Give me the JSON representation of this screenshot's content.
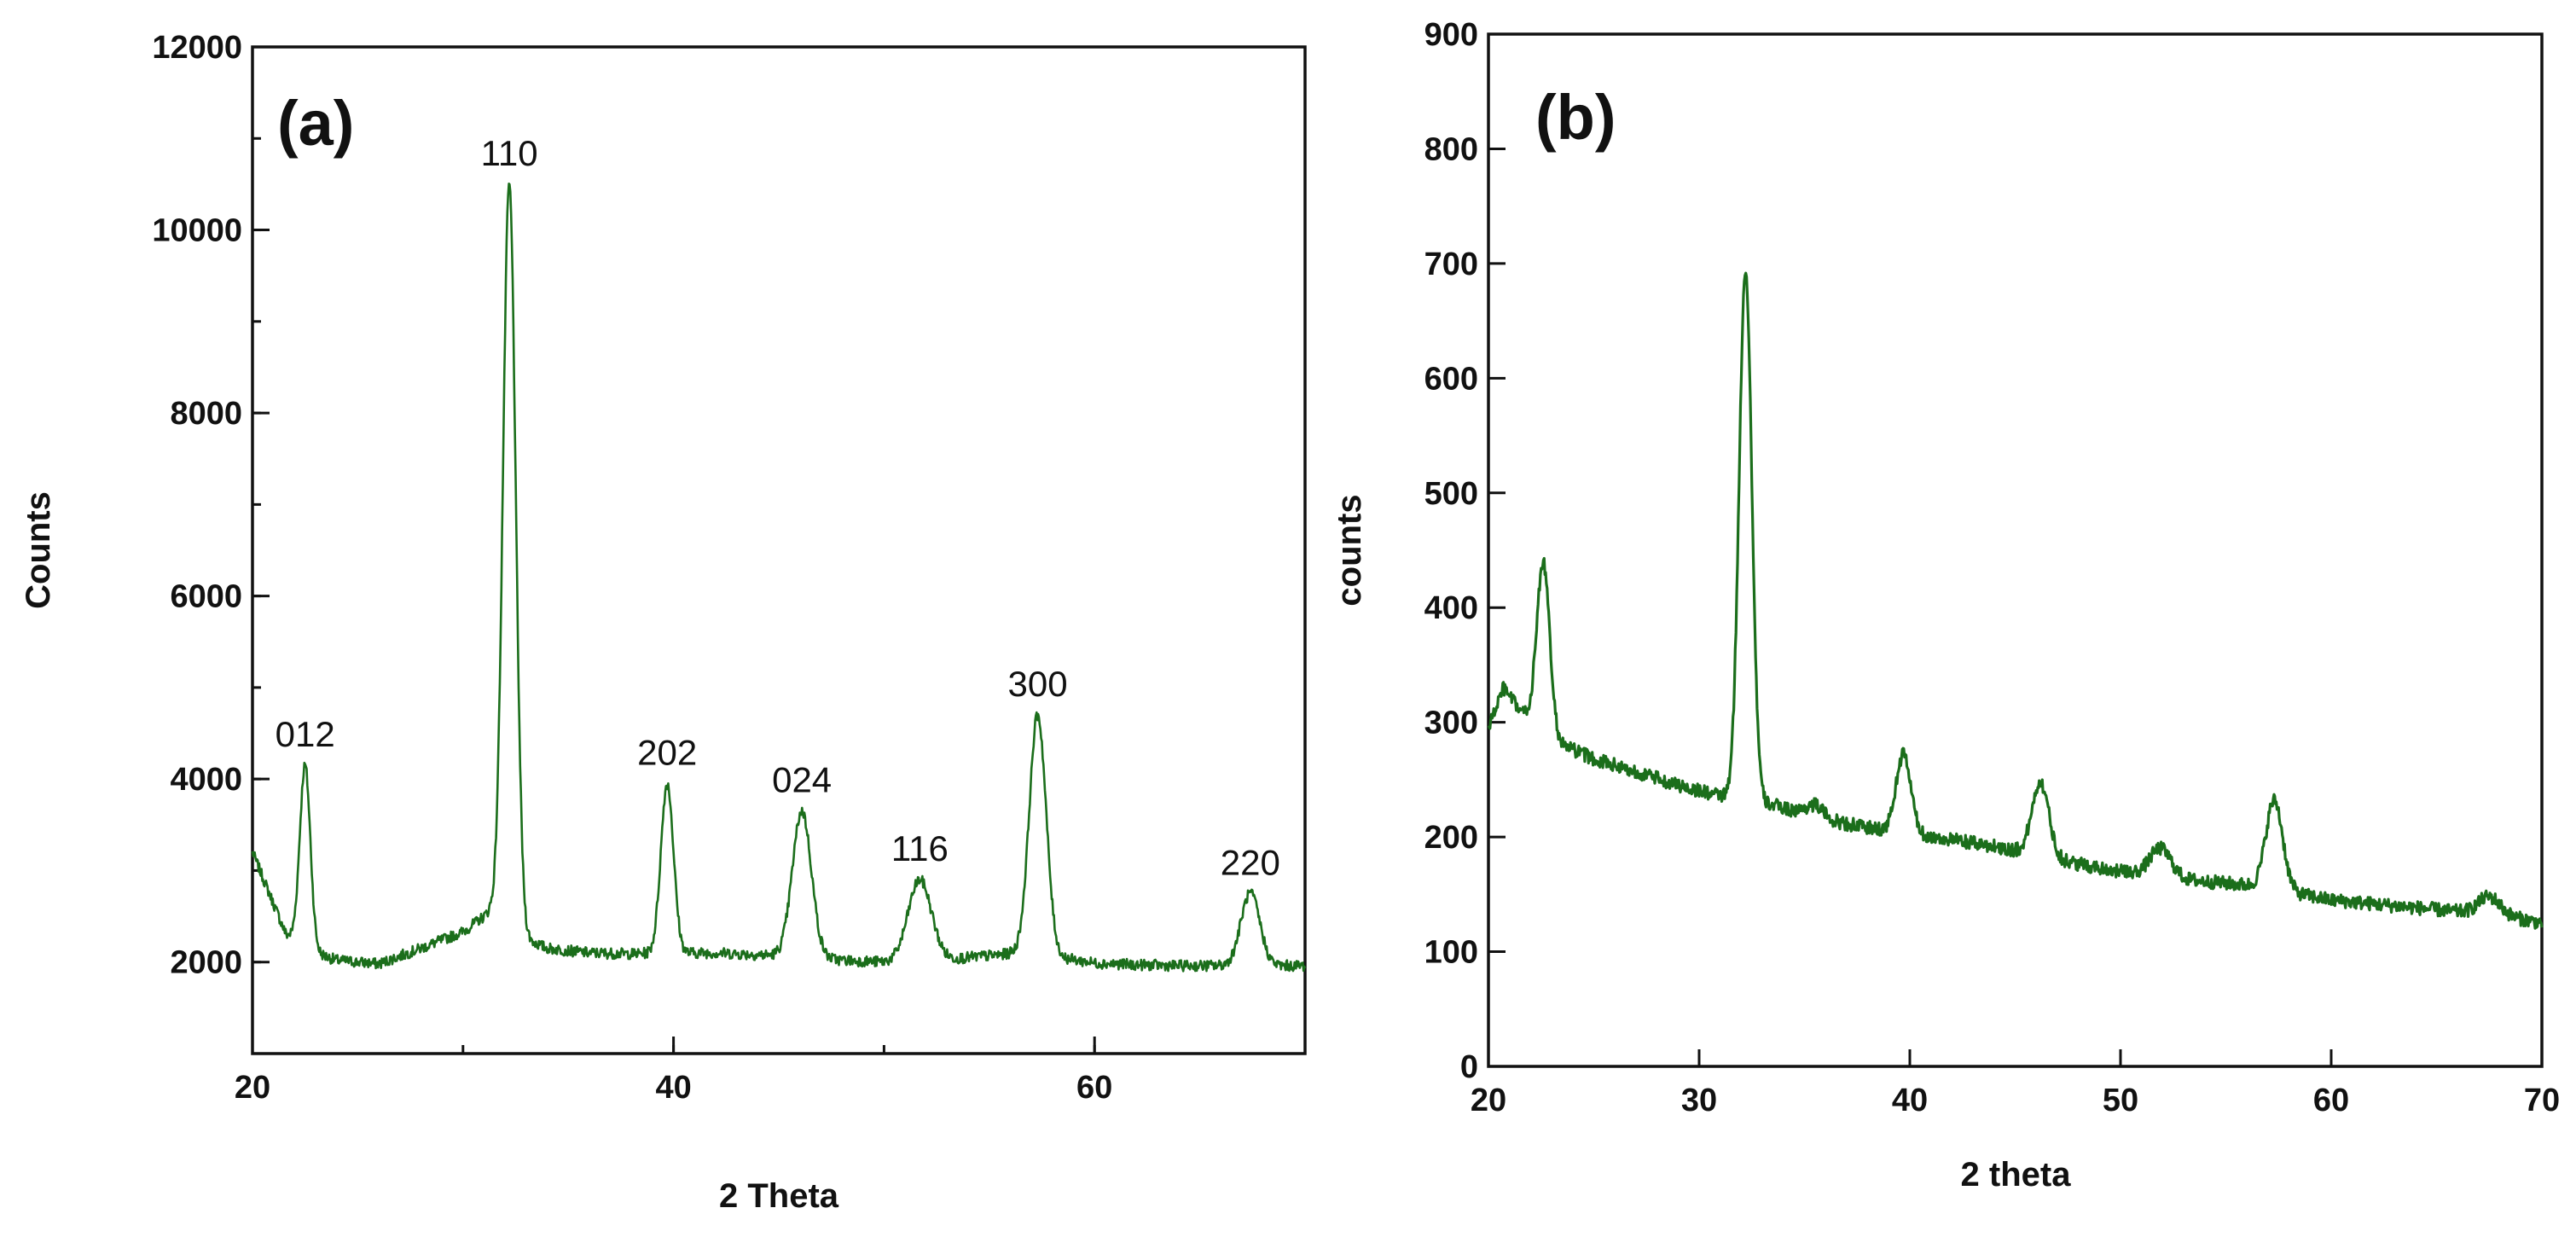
{
  "colors": {
    "line": "#1b6e1b",
    "axis": "#111111",
    "background": "#ffffff"
  },
  "chart_data": [
    {
      "type": "line",
      "panel_label": "(a)",
      "title": "",
      "xlabel": "2 Theta",
      "ylabel": "Counts",
      "xlim": [
        20,
        70
      ],
      "ylim": [
        1000,
        12000
      ],
      "xticks": [
        20,
        40,
        60
      ],
      "xtick_labels": [
        "20",
        "40",
        "60"
      ],
      "yticks": [
        2000,
        4000,
        6000,
        8000,
        10000,
        12000
      ],
      "ytick_labels": [
        "2000",
        "4000",
        "6000",
        "8000",
        "10000",
        "12000"
      ],
      "minor_x_step": 10,
      "minor_y_step": 1000,
      "grid": false,
      "noise": 60,
      "baseline_points": [
        [
          20,
          3200
        ],
        [
          20.8,
          2750
        ],
        [
          21.6,
          2300
        ],
        [
          22.0,
          2250
        ],
        [
          23,
          2100
        ],
        [
          24,
          2020
        ],
        [
          26,
          1980
        ],
        [
          28,
          2150
        ],
        [
          30,
          2330
        ],
        [
          31.3,
          2550
        ],
        [
          33,
          2250
        ],
        [
          34,
          2150
        ],
        [
          36,
          2100
        ],
        [
          38,
          2090
        ],
        [
          40,
          2100
        ],
        [
          42,
          2100
        ],
        [
          44,
          2080
        ],
        [
          46,
          2060
        ],
        [
          48,
          2020
        ],
        [
          50,
          2000
        ],
        [
          52,
          2010
        ],
        [
          54,
          2050
        ],
        [
          56,
          2090
        ],
        [
          58,
          2060
        ],
        [
          60,
          1990
        ],
        [
          62,
          1970
        ],
        [
          64,
          1960
        ],
        [
          66,
          1960
        ],
        [
          68,
          1960
        ],
        [
          70,
          1960
        ]
      ],
      "peaks": [
        {
          "label": "012",
          "x": 22.5,
          "y": 4150
        },
        {
          "label": "110",
          "x": 32.2,
          "y": 10500
        },
        {
          "label": "202",
          "x": 39.7,
          "y": 3950
        },
        {
          "label": "024",
          "x": 46.1,
          "y": 3650
        },
        {
          "label": "116",
          "x": 51.7,
          "y": 2900
        },
        {
          "label": "300",
          "x": 57.3,
          "y": 4700
        },
        {
          "label": "220",
          "x": 67.4,
          "y": 2750
        }
      ],
      "peak_widths": [
        0.25,
        0.3,
        0.3,
        0.45,
        0.55,
        0.4,
        0.45
      ]
    },
    {
      "type": "line",
      "panel_label": "(b)",
      "title": "",
      "xlabel": "2 theta",
      "ylabel": "counts",
      "xlim": [
        20,
        70
      ],
      "ylim": [
        0,
        900
      ],
      "xticks": [
        20,
        30,
        40,
        50,
        60,
        70
      ],
      "xtick_labels": [
        "20",
        "30",
        "40",
        "50",
        "60",
        "70"
      ],
      "yticks": [
        0,
        100,
        200,
        300,
        400,
        500,
        600,
        700,
        800,
        900
      ],
      "ytick_labels": [
        "0",
        "100",
        "200",
        "300",
        "400",
        "500",
        "600",
        "700",
        "800",
        "900"
      ],
      "grid": false,
      "noise": 6,
      "baseline_points": [
        [
          20,
          295
        ],
        [
          20.7,
          330
        ],
        [
          21.5,
          310
        ],
        [
          22.2,
          300
        ],
        [
          23.5,
          280
        ],
        [
          25,
          268
        ],
        [
          27,
          257
        ],
        [
          29,
          245
        ],
        [
          30.5,
          238
        ],
        [
          32,
          232
        ],
        [
          33.5,
          228
        ],
        [
          36,
          215
        ],
        [
          38,
          208
        ],
        [
          41,
          200
        ],
        [
          44,
          192
        ],
        [
          47,
          180
        ],
        [
          50,
          170
        ],
        [
          53,
          163
        ],
        [
          56,
          158
        ],
        [
          58,
          152
        ],
        [
          60,
          145
        ],
        [
          63,
          140
        ],
        [
          66,
          135
        ],
        [
          68,
          132
        ],
        [
          70,
          125
        ]
      ],
      "peaks": [
        {
          "x": 22.6,
          "y": 440
        },
        {
          "x": 32.2,
          "y": 695
        },
        {
          "x": 35.5,
          "y": 228
        },
        {
          "x": 39.7,
          "y": 272
        },
        {
          "x": 46.2,
          "y": 248
        },
        {
          "x": 51.9,
          "y": 190
        },
        {
          "x": 57.3,
          "y": 232
        },
        {
          "x": 67.5,
          "y": 148
        }
      ],
      "peak_widths": [
        0.3,
        0.3,
        0.4,
        0.35,
        0.4,
        0.5,
        0.4,
        0.5
      ]
    }
  ]
}
